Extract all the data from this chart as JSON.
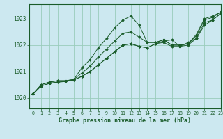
{
  "title": "Graphe pression niveau de la mer (hPa)",
  "background_color": "#cce8f0",
  "grid_color": "#99ccbb",
  "line_color": "#1a5c2a",
  "xlim": [
    -0.5,
    23
  ],
  "ylim": [
    1019.6,
    1023.55
  ],
  "yticks": [
    1020,
    1021,
    1022,
    1023
  ],
  "xticks": [
    0,
    1,
    2,
    3,
    4,
    5,
    6,
    7,
    8,
    9,
    10,
    11,
    12,
    13,
    14,
    15,
    16,
    17,
    18,
    19,
    20,
    21,
    22,
    23
  ],
  "series": [
    [
      1020.15,
      1020.5,
      1020.6,
      1020.65,
      1020.65,
      1020.7,
      1021.15,
      1021.45,
      1021.9,
      1022.25,
      1022.65,
      1022.95,
      1023.1,
      1022.75,
      1022.1,
      1022.1,
      1022.2,
      1022.0,
      1022.0,
      1022.05,
      1022.4,
      1023.0,
      1023.1,
      1023.25
    ],
    [
      1020.15,
      1020.5,
      1020.6,
      1020.65,
      1020.65,
      1020.7,
      1020.95,
      1021.2,
      1021.55,
      1021.85,
      1022.15,
      1022.45,
      1022.5,
      1022.3,
      1022.1,
      1022.1,
      1022.2,
      1022.0,
      1022.0,
      1022.05,
      1022.35,
      1022.95,
      1023.05,
      1023.25
    ],
    [
      1020.15,
      1020.45,
      1020.55,
      1020.6,
      1020.62,
      1020.68,
      1020.82,
      1021.0,
      1021.25,
      1021.5,
      1021.75,
      1022.0,
      1022.05,
      1021.95,
      1021.9,
      1022.05,
      1022.1,
      1021.95,
      1021.95,
      1022.0,
      1022.25,
      1022.75,
      1022.95,
      1023.2
    ],
    [
      1020.15,
      1020.45,
      1020.55,
      1020.6,
      1020.62,
      1020.68,
      1020.82,
      1021.0,
      1021.25,
      1021.5,
      1021.75,
      1022.0,
      1022.05,
      1021.95,
      1021.9,
      1022.05,
      1022.15,
      1022.2,
      1021.95,
      1022.1,
      1022.25,
      1022.85,
      1022.95,
      1023.2
    ]
  ]
}
